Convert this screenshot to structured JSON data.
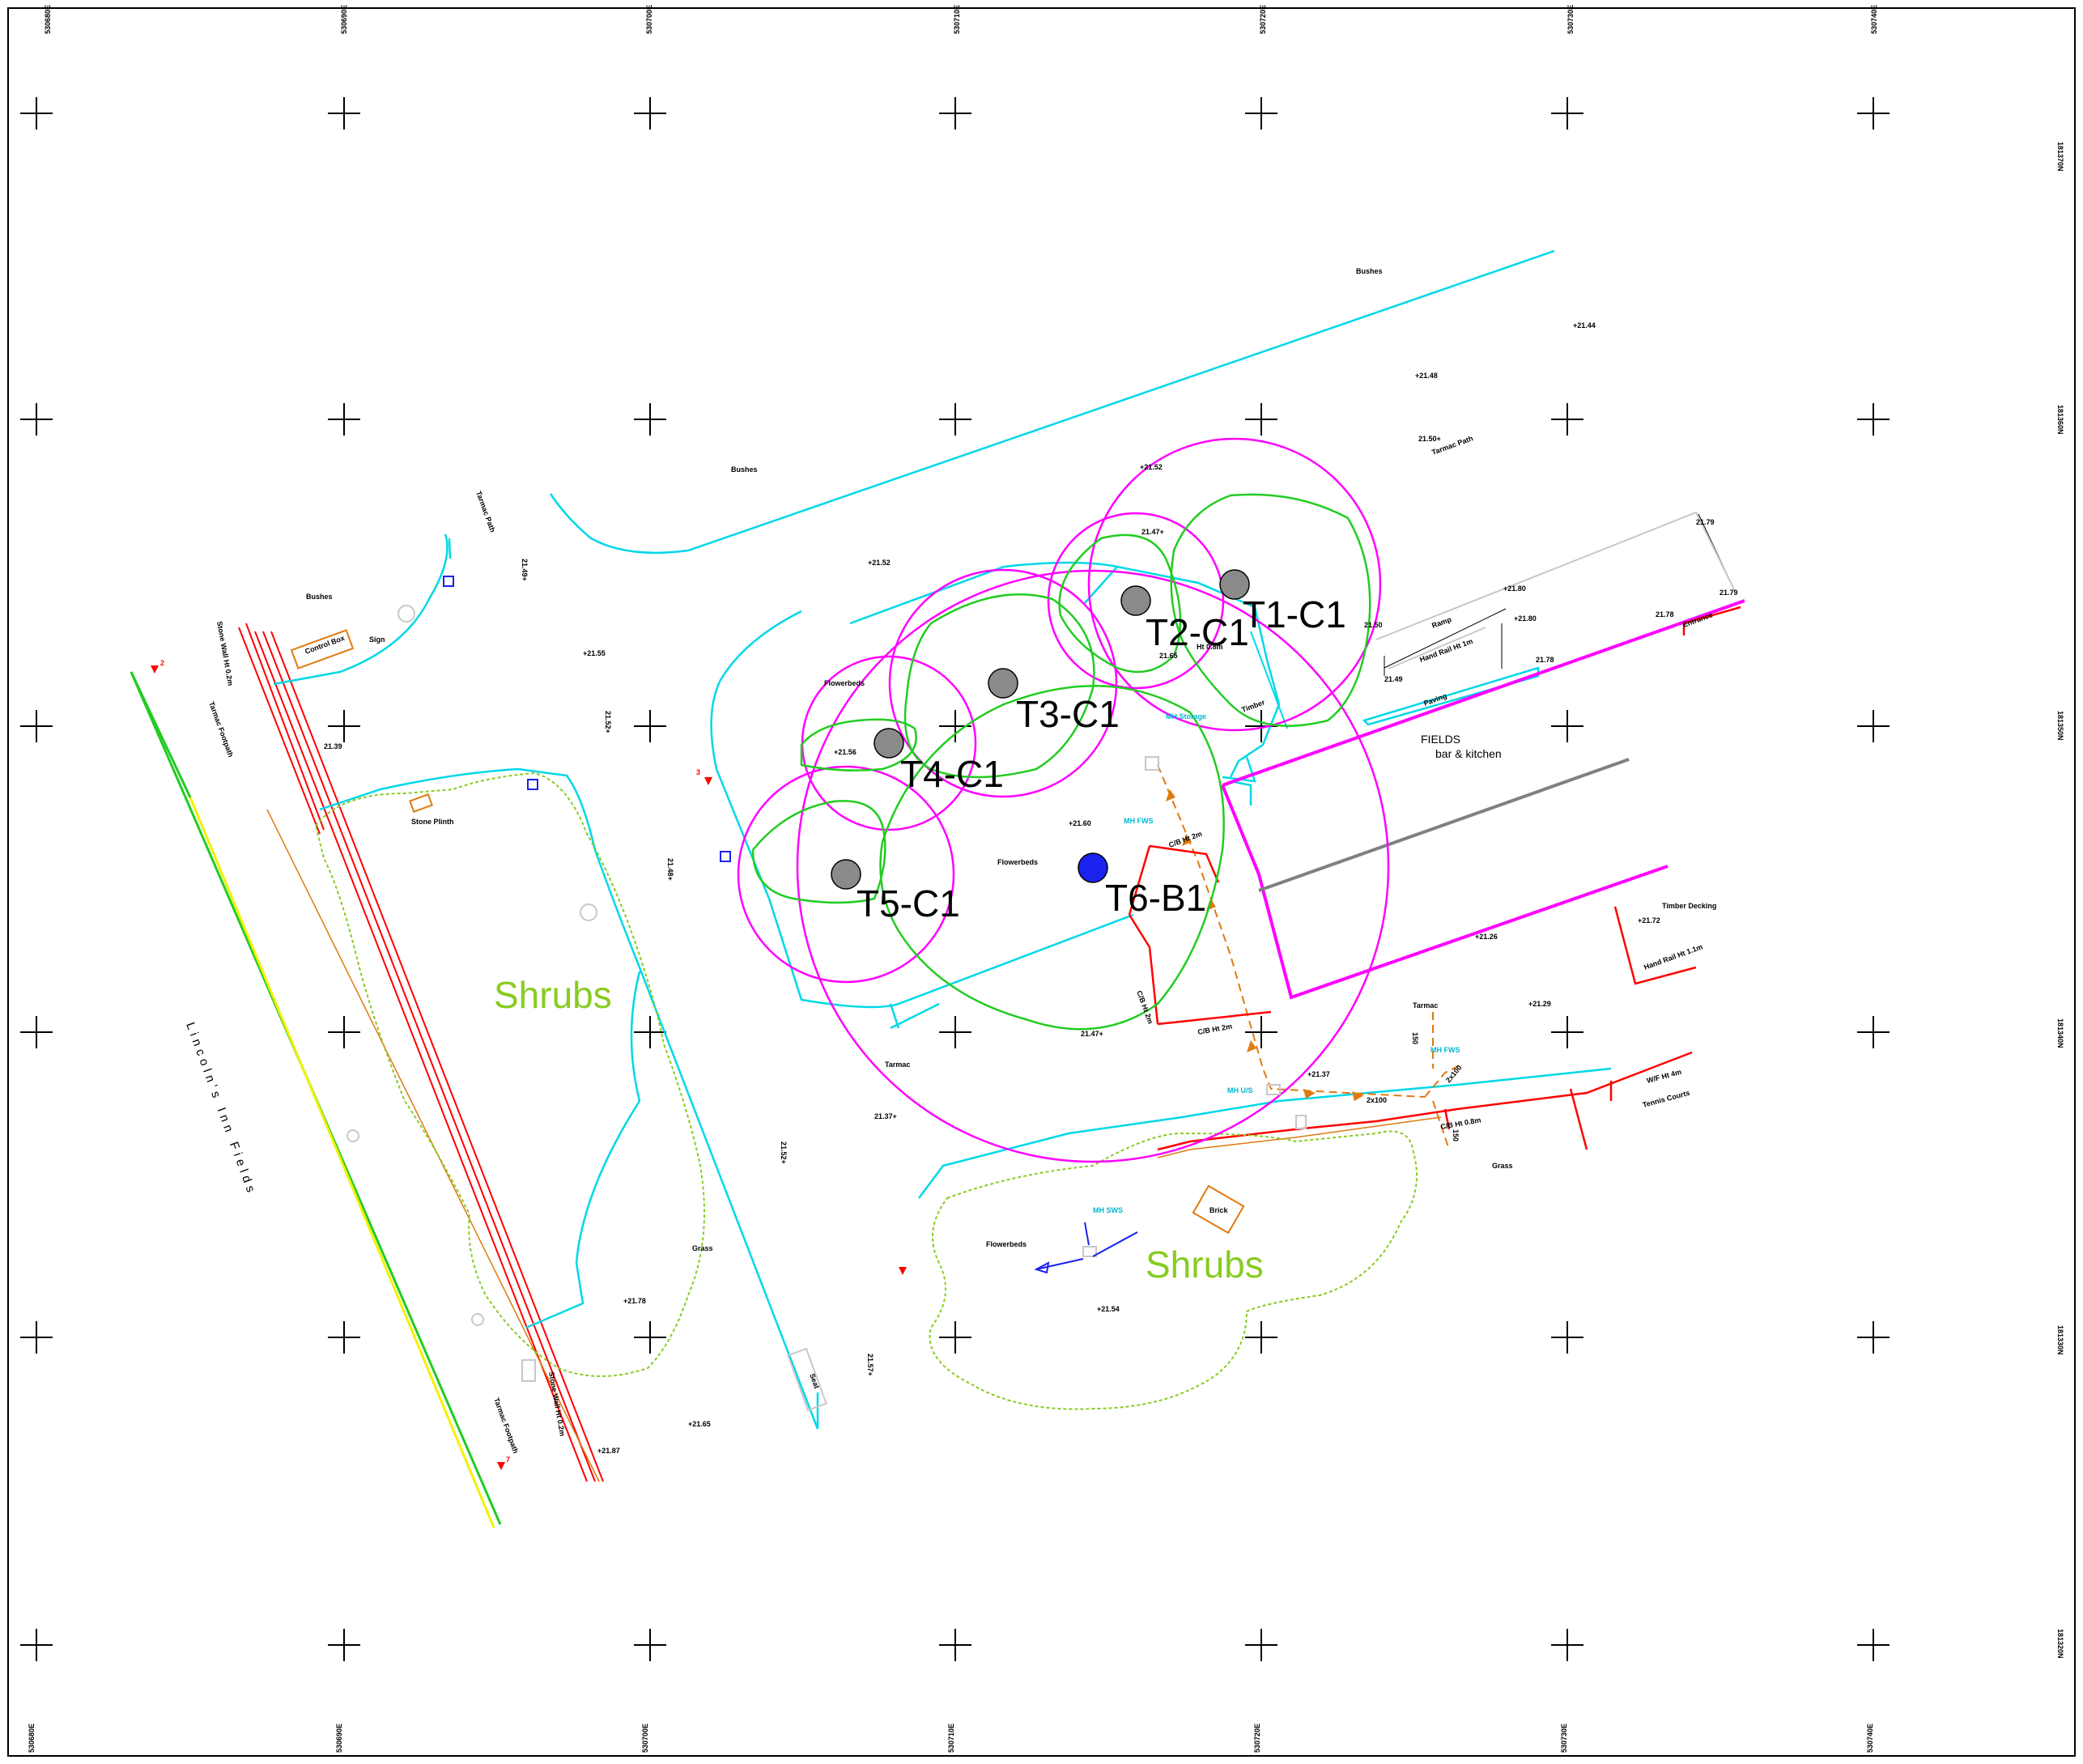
{
  "colors": {
    "canopy": "#ff00ff",
    "root": "#22cc22",
    "kerb": "#00d8e8",
    "wall": "#ff0000",
    "drain": "#e07a10",
    "hedge": "#88cc22",
    "boundary_green": "#22cc22",
    "boundary_yellow": "#f2f200",
    "building": "#ff00ff",
    "tree_fill": "#8a8a8a",
    "tree_b_fill": "#1a22ee",
    "grid": "#000000"
  },
  "trees": [
    {
      "id": "T1-C1"
    },
    {
      "id": "T2-C1"
    },
    {
      "id": "T3-C1"
    },
    {
      "id": "T4-C1"
    },
    {
      "id": "T5-C1"
    },
    {
      "id": "T6-B1"
    }
  ],
  "areas": {
    "shrubs_west": "Shrubs",
    "shrubs_south": "Shrubs",
    "street": "Lincoln's Inn Fields",
    "building_name": "FIELDS",
    "building_sub": "bar & kitchen"
  },
  "grid": {
    "eastings": [
      "530680E",
      "530690E",
      "530700E",
      "530710E",
      "530720E",
      "530730E",
      "530740E"
    ],
    "northings": [
      "181370N",
      "181360N",
      "181350N",
      "181340N",
      "181330N",
      "181320N"
    ]
  },
  "features": {
    "bushes_1": "Bushes",
    "bushes_2": "Bushes",
    "bushes_3": "Bushes",
    "tarmac_path_1": "Tarmac Path",
    "tarmac_path_2": "Tarmac Path",
    "tarmac_footpath_1": "Tarmac Footpath",
    "tarmac_footpath_2": "Tarmac Footpath",
    "flowerbeds_1": "Flowerbeds",
    "flowerbeds_2": "Flowerbeds",
    "flowerbeds_3": "Flowerbeds",
    "tarmac_1": "Tarmac",
    "tarmac_2": "Tarmac",
    "grass_1": "Grass",
    "grass_2": "Grass",
    "paving": "Paving",
    "ramp": "Ramp",
    "hand_rail_1": "Hand Rail Ht 1m",
    "hand_rail_2": "Hand Rail Ht 1.1m",
    "timber_decking": "Timber Decking",
    "tennis_courts": "Tennis Courts",
    "entrance": "Entrance",
    "control_box": "Control Box",
    "stone_plinth": "Stone Plinth",
    "brick": "Brick",
    "seat_1": "Seat",
    "timber": "Timber",
    "cb_1": "C/B Ht 2m",
    "cb_2": "C/B Ht 2m",
    "cb_3": "C/B Ht 2m",
    "cb_4": "C/B Ht 0.8m",
    "wf_1": "W/F Ht 4m",
    "ht_08": "Ht 0.8m",
    "mh_1": "MH Storage",
    "mh_2": "MH FWS",
    "mh_3": "MH SWS",
    "mh_4": "MH FWS",
    "mh_5": "MH U/S",
    "pipe_1": "2x100",
    "pipe_2": "2x100",
    "pipe_3": "150",
    "pipe_4": "150",
    "sign": "Sign",
    "wall_1": "Stone Wall Ht 0.2m",
    "wall_2": "Stone Wall Ht 0.2m"
  },
  "spot_levels": {
    "l1": "+21.44",
    "l2": "+21.48",
    "l3": "21.50+",
    "l4": "+21.52",
    "l5": "21.47+",
    "l6": "+21.52",
    "l7": "+21.55",
    "l8": "21.39",
    "l9": "21.52+",
    "l10": "21.49+",
    "l11": "+21.56",
    "l12": "+21.60",
    "l13": "21.48+",
    "l14": "21.47+",
    "l15": "+21.37",
    "l16": "21.37+",
    "l17": "21.52+",
    "l18": "+21.54",
    "l19": "+21.78",
    "l20": "+21.65",
    "l21": "21.57+",
    "l22": "+21.87",
    "l23": "+21.80",
    "l24": "+21.80",
    "l25": "21.79",
    "l26": "21.79",
    "l27": "21.49",
    "l28": "21.50",
    "l29": "+21.72",
    "l30": "+21.26",
    "l31": "+21.29",
    "l32": "21.78",
    "l33": "21.65",
    "l34": "21.78"
  },
  "stations": {
    "s1": "2",
    "s2": "3",
    "s3": "7"
  }
}
